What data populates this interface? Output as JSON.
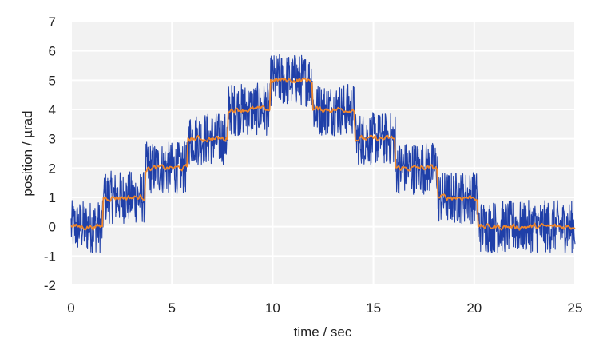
{
  "chart_data": {
    "type": "line",
    "xlabel": "time / sec",
    "ylabel": "position / µrad",
    "xlim": [
      0,
      25
    ],
    "ylim": [
      -2,
      7
    ],
    "x_ticks": [
      0,
      5,
      10,
      15,
      20,
      25
    ],
    "y_ticks": [
      -2,
      -1,
      0,
      1,
      2,
      3,
      4,
      5,
      6,
      7
    ],
    "grid": true,
    "background_color": "#f2f2f2",
    "grid_color": "#ffffff",
    "step_segments": [
      {
        "x_start": 0.0,
        "x_end": 1.6,
        "level": 0
      },
      {
        "x_start": 1.6,
        "x_end": 3.7,
        "level": 1
      },
      {
        "x_start": 3.7,
        "x_end": 5.8,
        "level": 2
      },
      {
        "x_start": 5.8,
        "x_end": 7.8,
        "level": 3
      },
      {
        "x_start": 7.8,
        "x_end": 9.9,
        "level": 4
      },
      {
        "x_start": 9.9,
        "x_end": 12.0,
        "level": 5
      },
      {
        "x_start": 12.0,
        "x_end": 14.1,
        "level": 4
      },
      {
        "x_start": 14.1,
        "x_end": 16.1,
        "level": 3
      },
      {
        "x_start": 16.1,
        "x_end": 18.2,
        "level": 2
      },
      {
        "x_start": 18.2,
        "x_end": 20.2,
        "level": 1
      },
      {
        "x_start": 20.2,
        "x_end": 25.0,
        "level": 0
      }
    ],
    "series": [
      {
        "color": "#1f3fa8",
        "noise_amplitude": 0.9,
        "samples": 1500
      },
      {
        "color": "#f0862a",
        "noise_amplitude": 0.12,
        "samples": 500
      }
    ]
  }
}
